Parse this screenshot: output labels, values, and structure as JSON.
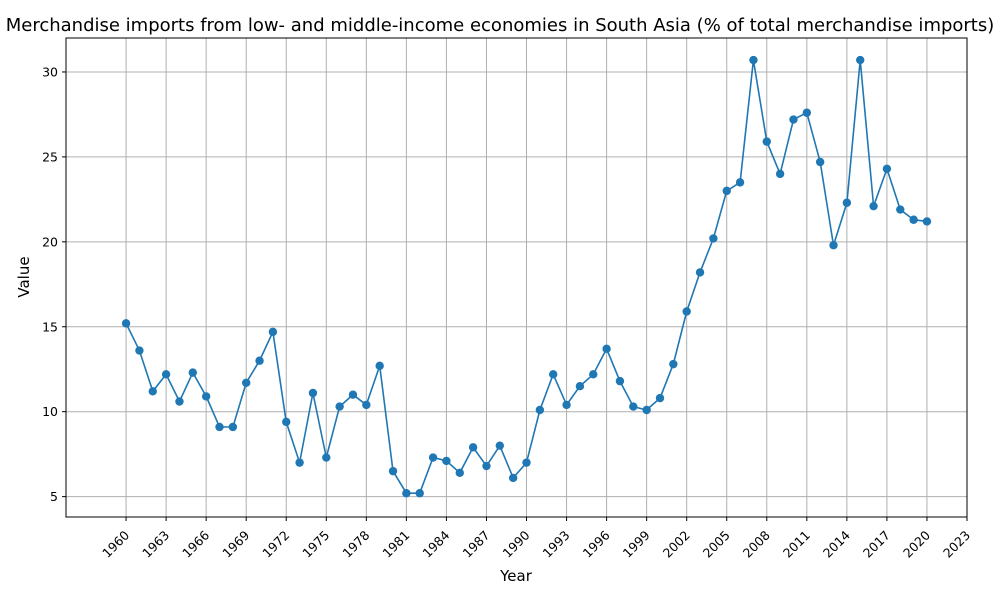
{
  "chart_data": {
    "type": "line",
    "title": "Merchandise imports from low- and middle-income economies in South Asia (% of total merchandise imports)",
    "xlabel": "Year",
    "ylabel": "Value",
    "xlim": [
      1955.5,
      2023
    ],
    "ylim": [
      3.8,
      32
    ],
    "xticks": [
      1960,
      1963,
      1966,
      1969,
      1972,
      1975,
      1978,
      1981,
      1984,
      1987,
      1990,
      1993,
      1996,
      1999,
      2002,
      2005,
      2008,
      2011,
      2014,
      2017,
      2020,
      2023
    ],
    "yticks": [
      5,
      10,
      15,
      20,
      25,
      30
    ],
    "grid": true,
    "color": "#1f77b4",
    "series": [
      {
        "x": [
          1960,
          1961,
          1962,
          1963,
          1964,
          1965,
          1966,
          1967,
          1968,
          1969,
          1970,
          1971,
          1972,
          1973,
          1974,
          1975,
          1976,
          1977,
          1978,
          1979,
          1980,
          1981,
          1982,
          1983,
          1984,
          1985,
          1986,
          1987,
          1988,
          1989,
          1990,
          1991,
          1992,
          1993,
          1994,
          1995,
          1996,
          1997,
          1998,
          1999,
          2000,
          2001,
          2002,
          2003,
          2004,
          2005,
          2006,
          2007,
          2008,
          2009,
          2010,
          2011,
          2012,
          2013,
          2014,
          2015,
          2016,
          2017,
          2018,
          2019,
          2020
        ],
        "values": [
          15.2,
          13.6,
          11.2,
          12.2,
          10.6,
          12.3,
          10.9,
          9.1,
          9.1,
          11.7,
          13.0,
          14.7,
          9.4,
          7.0,
          11.1,
          7.3,
          10.3,
          11.0,
          10.4,
          12.7,
          6.5,
          5.2,
          5.2,
          7.3,
          7.1,
          6.4,
          7.9,
          6.8,
          8.0,
          6.1,
          7.0,
          10.1,
          12.2,
          10.4,
          11.5,
          12.2,
          13.7,
          11.8,
          10.3,
          10.1,
          10.8,
          12.8,
          15.9,
          18.2,
          20.2,
          23.0,
          23.5,
          30.7,
          25.9,
          24.0,
          27.2,
          27.6,
          24.7,
          19.8,
          22.3,
          30.7,
          22.1,
          24.3,
          21.9,
          21.3,
          21.2
        ]
      }
    ]
  }
}
